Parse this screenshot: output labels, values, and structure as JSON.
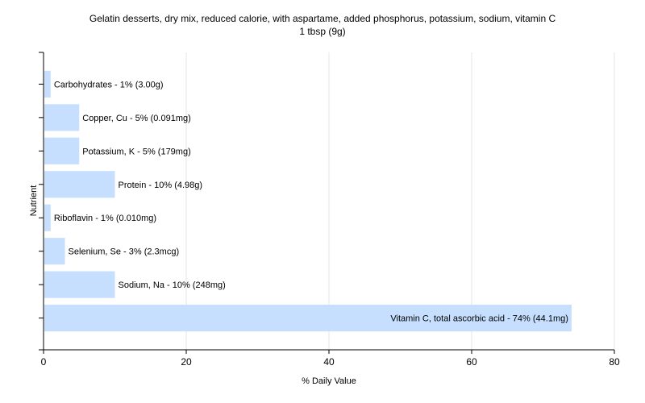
{
  "chart_data": {
    "type": "bar",
    "orientation": "horizontal",
    "title": "Gelatin desserts, dry mix, reduced calorie, with aspartame, added phosphorus, potassium, sodium, vitamin C",
    "subtitle": "1 tbsp (9g)",
    "xlabel": "% Daily Value",
    "ylabel": "Nutrient",
    "xlim": [
      0,
      80
    ],
    "xticks": [
      0,
      20,
      40,
      60,
      80
    ],
    "grid": true,
    "bar_color": "#c6dfff",
    "categories": [
      "Carbohydrates - 1% (3.00g)",
      "Copper, Cu - 5% (0.091mg)",
      "Potassium, K - 5% (179mg)",
      "Protein - 10% (4.98g)",
      "Riboflavin - 1% (0.010mg)",
      "Selenium, Se - 3% (2.3mcg)",
      "Sodium, Na - 10% (248mg)",
      "Vitamin C, total ascorbic acid - 74% (44.1mg)"
    ],
    "values": [
      1,
      5,
      5,
      10,
      1,
      3,
      10,
      74
    ]
  }
}
